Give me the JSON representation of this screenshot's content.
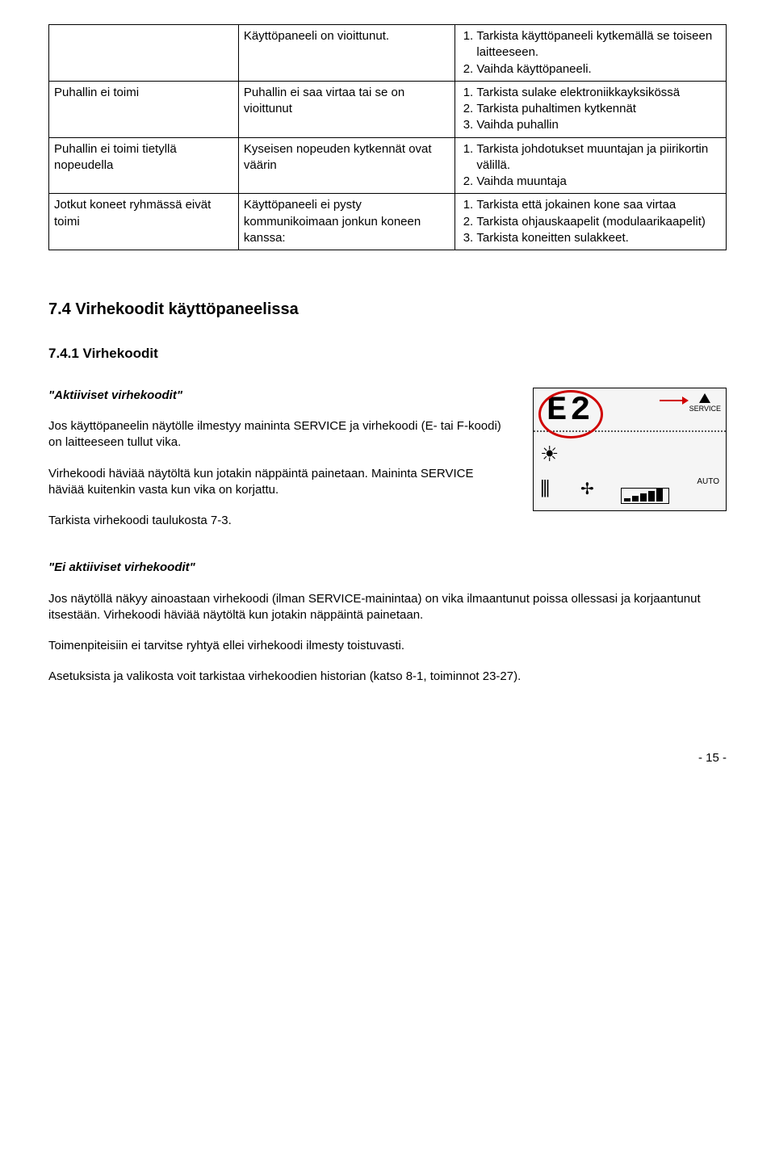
{
  "table": {
    "rows": [
      {
        "c1": "",
        "c2": "Käyttöpaneeli on vioittunut.",
        "c3_items": [
          "Tarkista käyttöpaneeli kytkemällä se toiseen laitteeseen.",
          "Vaihda käyttöpaneeli."
        ]
      },
      {
        "c1": "Puhallin ei toimi",
        "c2": "Puhallin ei saa virtaa tai se on vioittunut",
        "c3_items": [
          "Tarkista sulake elektroniikkayksikössä",
          "Tarkista puhaltimen kytkennät",
          "Vaihda puhallin"
        ]
      },
      {
        "c1": "Puhallin ei toimi tietyllä nopeudella",
        "c2": "Kyseisen nopeuden kytkennät ovat väärin",
        "c3_items": [
          "Tarkista johdotukset muuntajan ja piirikortin välillä.",
          "Vaihda muuntaja"
        ]
      },
      {
        "c1": "Jotkut koneet ryhmässä eivät toimi",
        "c2": "Käyttöpaneeli ei pysty kommunikoimaan jonkun koneen kanssa:",
        "c3_items": [
          "Tarkista että jokainen kone saa virtaa",
          "Tarkista ohjauskaapelit (modulaarikaapelit)",
          "Tarkista koneitten sulakkeet."
        ]
      }
    ]
  },
  "headings": {
    "h2": "7.4 Virhekoodit käyttöpaneelissa",
    "h3": "7.4.1 Virhekoodit"
  },
  "active": {
    "title": "\"Aktiiviset virhekoodit\"",
    "p1": "Jos käyttöpaneelin näytölle ilmestyy maininta SERVICE ja virhekoodi (E- tai F-koodi) on laitteeseen tullut vika.",
    "p2": "Virhekoodi häviää näytöltä kun jotakin näppäintä painetaan. Maininta SERVICE häviää kuitenkin vasta kun vika on korjattu.",
    "p3": "Tarkista virhekoodi taulukosta 7-3."
  },
  "inactive": {
    "title": "\"Ei aktiiviset virhekoodit\"",
    "p1": "Jos näytöllä näkyy ainoastaan virhekoodi (ilman SERVICE-mainintaa) on vika ilmaantunut poissa ollessasi ja korjaantunut itsestään. Virhekoodi häviää näytöltä kun jotakin näppäintä painetaan.",
    "p2": "Toimenpiteisiin ei tarvitse ryhtyä ellei virhekoodi ilmesty toistuvasti.",
    "p3": "Asetuksista ja valikosta voit tarkistaa virhekoodien historian (katso 8-1, toiminnot 23-27)."
  },
  "display": {
    "code": "E2",
    "service": "SERVICE",
    "auto": "AUTO"
  },
  "page": "- 15 -"
}
